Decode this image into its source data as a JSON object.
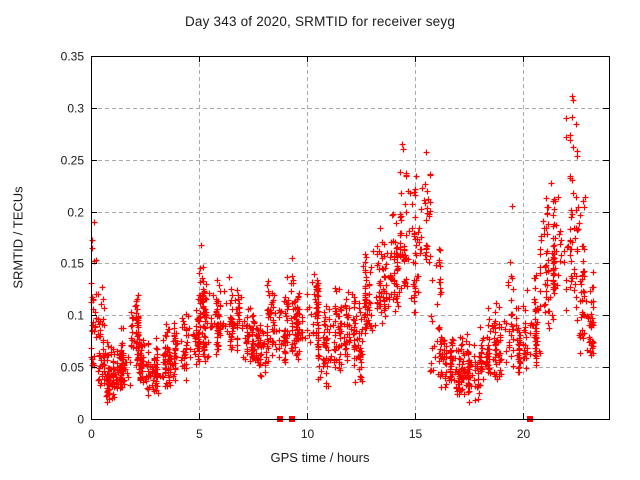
{
  "title": "Day 343 of 2020, SRMTID for receiver seyg",
  "chart_data": {
    "type": "scatter",
    "title": "Day 343 of 2020, SRMTID for receiver seyg",
    "xlabel": "GPS time / hours",
    "ylabel": "SRMTID / TECUs",
    "xlim": [
      0,
      24
    ],
    "ylim": [
      0,
      0.35
    ],
    "xticks": [
      0,
      5,
      10,
      15,
      20
    ],
    "yticks": [
      0,
      0.05,
      0.1,
      0.15,
      0.2,
      0.25,
      0.3,
      0.35
    ],
    "grid": true,
    "legend_position": "none",
    "marker": "plus",
    "marker_color": "#ff0000",
    "series_name": "SRMTID",
    "cloud_bins_format": [
      "t_start_h",
      "t_end_h",
      "y_min_TECU",
      "y_max_TECU",
      "n_points",
      "bottom_skew"
    ],
    "cloud_bins": [
      [
        0.0,
        0.25,
        0.04,
        0.19,
        28,
        1.3
      ],
      [
        0.25,
        0.6,
        0.03,
        0.145,
        45,
        1.5
      ],
      [
        0.6,
        1.0,
        0.015,
        0.08,
        55,
        1.3
      ],
      [
        1.0,
        1.4,
        0.02,
        0.07,
        50,
        1.2
      ],
      [
        1.4,
        1.8,
        0.03,
        0.095,
        45,
        1.3
      ],
      [
        1.8,
        2.2,
        0.05,
        0.13,
        50,
        1.2
      ],
      [
        2.2,
        2.6,
        0.035,
        0.1,
        45,
        1.4
      ],
      [
        2.6,
        3.2,
        0.02,
        0.085,
        60,
        1.2
      ],
      [
        3.2,
        3.8,
        0.03,
        0.1,
        55,
        1.3
      ],
      [
        3.8,
        4.4,
        0.035,
        0.11,
        55,
        1.3
      ],
      [
        4.4,
        5.0,
        0.05,
        0.125,
        50,
        1.3
      ],
      [
        5.0,
        5.2,
        0.07,
        0.17,
        22,
        1.2
      ],
      [
        5.2,
        5.8,
        0.055,
        0.15,
        50,
        1.5
      ],
      [
        5.8,
        6.4,
        0.06,
        0.15,
        50,
        1.4
      ],
      [
        6.4,
        7.0,
        0.065,
        0.135,
        50,
        1.2
      ],
      [
        7.0,
        7.6,
        0.05,
        0.115,
        50,
        1.2
      ],
      [
        7.6,
        8.1,
        0.04,
        0.105,
        45,
        1.2
      ],
      [
        8.1,
        8.4,
        0.055,
        0.15,
        25,
        1.3
      ],
      [
        8.4,
        9.0,
        0.05,
        0.125,
        50,
        1.2
      ],
      [
        9.0,
        9.5,
        0.06,
        0.155,
        42,
        1.3
      ],
      [
        9.5,
        10.0,
        0.055,
        0.13,
        45,
        1.2
      ],
      [
        10.0,
        10.5,
        0.07,
        0.155,
        48,
        1.2
      ],
      [
        10.5,
        11.0,
        0.03,
        0.125,
        48,
        1.3
      ],
      [
        11.0,
        11.6,
        0.045,
        0.145,
        52,
        1.3
      ],
      [
        11.6,
        12.2,
        0.055,
        0.13,
        50,
        1.2
      ],
      [
        12.2,
        12.6,
        0.03,
        0.12,
        40,
        1.3
      ],
      [
        12.6,
        13.2,
        0.075,
        0.17,
        50,
        1.2
      ],
      [
        13.2,
        13.8,
        0.09,
        0.19,
        50,
        1.2
      ],
      [
        13.8,
        14.3,
        0.1,
        0.225,
        45,
        1.3
      ],
      [
        14.3,
        14.8,
        0.12,
        0.265,
        42,
        1.4
      ],
      [
        14.8,
        15.3,
        0.1,
        0.24,
        40,
        1.4
      ],
      [
        15.3,
        15.7,
        0.13,
        0.255,
        25,
        1.1
      ],
      [
        15.7,
        16.2,
        0.04,
        0.22,
        35,
        2.2
      ],
      [
        16.2,
        16.8,
        0.03,
        0.09,
        55,
        1.2
      ],
      [
        16.8,
        17.4,
        0.02,
        0.08,
        55,
        1.2
      ],
      [
        17.4,
        18.0,
        0.015,
        0.085,
        55,
        1.3
      ],
      [
        18.0,
        18.5,
        0.03,
        0.115,
        45,
        1.4
      ],
      [
        18.5,
        19.2,
        0.035,
        0.12,
        55,
        1.3
      ],
      [
        19.2,
        19.6,
        0.05,
        0.205,
        28,
        1.8
      ],
      [
        19.6,
        20.2,
        0.04,
        0.12,
        50,
        1.3
      ],
      [
        20.2,
        20.8,
        0.05,
        0.15,
        48,
        1.3
      ],
      [
        20.8,
        21.4,
        0.08,
        0.24,
        48,
        1.3
      ],
      [
        21.4,
        22.0,
        0.1,
        0.235,
        52,
        1.1
      ],
      [
        22.0,
        22.5,
        0.1,
        0.31,
        45,
        1.6
      ],
      [
        22.5,
        22.9,
        0.06,
        0.26,
        40,
        1.6
      ],
      [
        22.9,
        23.25,
        0.05,
        0.155,
        38,
        1.3
      ]
    ],
    "notable_points": [
      {
        "x": 0.15,
        "y": 0.19
      },
      {
        "x": 5.1,
        "y": 0.168
      },
      {
        "x": 9.3,
        "y": 0.155
      },
      {
        "x": 14.4,
        "y": 0.265
      },
      {
        "x": 14.45,
        "y": 0.26
      },
      {
        "x": 15.5,
        "y": 0.257
      },
      {
        "x": 19.5,
        "y": 0.205
      },
      {
        "x": 22.3,
        "y": 0.311
      },
      {
        "x": 22.32,
        "y": 0.308
      },
      {
        "x": 22.3,
        "y": 0.291
      },
      {
        "x": 22.35,
        "y": 0.262
      }
    ],
    "baseline_square_markers_x": [
      8.75,
      9.3,
      20.35
    ]
  },
  "colors": {
    "marker": "#ff0000",
    "grid": "#aaaaaa",
    "axis": "#000000",
    "text": "#1a1a1a",
    "background": "#ffffff"
  }
}
